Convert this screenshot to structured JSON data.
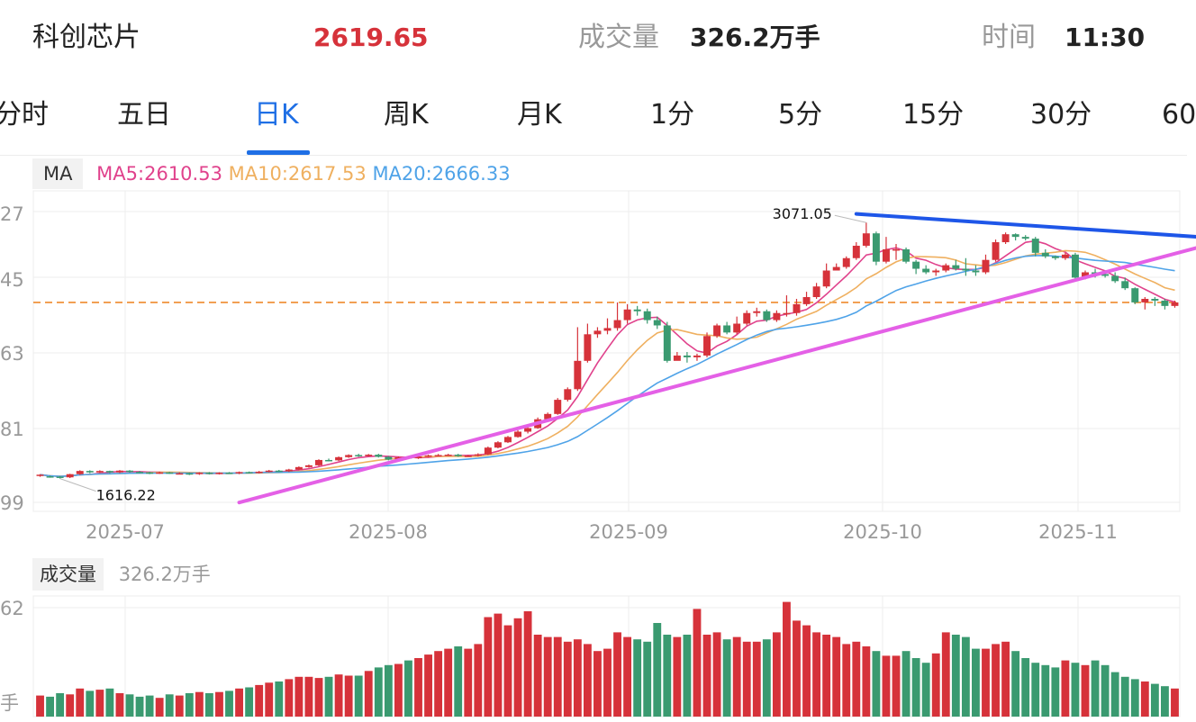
{
  "header": {
    "name": "科创芯片",
    "price": "2619.65",
    "volume_label": "成交量",
    "volume_value": "326.2万手",
    "time_label": "时间",
    "time_value": "11:30",
    "colors": {
      "up": "#d6323a",
      "down": "#3a9a70",
      "accent": "#1f6fe5"
    }
  },
  "tabs": [
    "分时",
    "五日",
    "日K",
    "周K",
    "月K",
    "1分",
    "5分",
    "15分",
    "30分",
    "60"
  ],
  "active_tab": "日K",
  "ma_legend": {
    "tag": "MA",
    "ma5": "MA5:2610.53",
    "ma10": "MA10:2617.53",
    "ma20": "MA20:2666.33",
    "colors": {
      "ma5": "#e0428c",
      "ma10": "#efb060",
      "ma20": "#4fa3e8"
    }
  },
  "volume_legend": {
    "tag": "成交量",
    "value": "326.2万手"
  },
  "price_axis_labels": [
    "27",
    "45",
    "63",
    "81",
    "99"
  ],
  "volume_axis_labels": [
    "62",
    "手"
  ],
  "annotations": {
    "high": "3071.05",
    "low": "1616.22"
  },
  "chart_data": {
    "type": "candlestick",
    "x_ticks": [
      "2025-07",
      "2025-08",
      "2025-09",
      "2025-10",
      "2025-11"
    ],
    "ylim": [
      1440,
      3250
    ],
    "close_ref": 2619.65,
    "candles": [
      [
        1640,
        1647,
        1635,
        1650
      ],
      [
        1638,
        1635,
        1630,
        1642
      ],
      [
        1636,
        1630,
        1625,
        1640
      ],
      [
        1632,
        1650,
        1628,
        1652
      ],
      [
        1650,
        1668,
        1646,
        1672
      ],
      [
        1668,
        1660,
        1655,
        1672
      ],
      [
        1660,
        1668,
        1656,
        1672
      ],
      [
        1668,
        1660,
        1655,
        1670
      ],
      [
        1660,
        1670,
        1656,
        1673
      ],
      [
        1670,
        1663,
        1658,
        1673
      ],
      [
        1663,
        1660,
        1655,
        1668
      ],
      [
        1660,
        1655,
        1650,
        1664
      ],
      [
        1655,
        1660,
        1651,
        1664
      ],
      [
        1660,
        1655,
        1651,
        1663
      ],
      [
        1655,
        1655,
        1650,
        1660
      ],
      [
        1655,
        1650,
        1645,
        1659
      ],
      [
        1650,
        1658,
        1646,
        1661
      ],
      [
        1658,
        1652,
        1648,
        1662
      ],
      [
        1652,
        1658,
        1648,
        1661
      ],
      [
        1658,
        1655,
        1651,
        1662
      ],
      [
        1655,
        1662,
        1650,
        1665
      ],
      [
        1662,
        1658,
        1654,
        1665
      ],
      [
        1658,
        1664,
        1654,
        1668
      ],
      [
        1664,
        1670,
        1660,
        1674
      ],
      [
        1670,
        1666,
        1662,
        1674
      ],
      [
        1666,
        1676,
        1662,
        1680
      ],
      [
        1676,
        1690,
        1672,
        1694
      ],
      [
        1690,
        1700,
        1686,
        1704
      ],
      [
        1700,
        1730,
        1696,
        1734
      ],
      [
        1730,
        1728,
        1722,
        1738
      ],
      [
        1728,
        1746,
        1724,
        1750
      ],
      [
        1746,
        1758,
        1742,
        1762
      ],
      [
        1758,
        1754,
        1748,
        1765
      ],
      [
        1754,
        1760,
        1750,
        1764
      ],
      [
        1760,
        1748,
        1744,
        1765
      ],
      [
        1748,
        1732,
        1728,
        1752
      ],
      [
        1732,
        1745,
        1728,
        1750
      ],
      [
        1745,
        1740,
        1735,
        1752
      ],
      [
        1740,
        1750,
        1736,
        1754
      ],
      [
        1750,
        1756,
        1746,
        1760
      ],
      [
        1756,
        1758,
        1752,
        1764
      ],
      [
        1758,
        1760,
        1752,
        1765
      ],
      [
        1760,
        1752,
        1748,
        1765
      ],
      [
        1752,
        1754,
        1748,
        1758
      ],
      [
        1754,
        1762,
        1750,
        1768
      ],
      [
        1762,
        1800,
        1758,
        1806
      ],
      [
        1800,
        1830,
        1796,
        1836
      ],
      [
        1830,
        1860,
        1826,
        1866
      ],
      [
        1860,
        1890,
        1856,
        1898
      ],
      [
        1890,
        1910,
        1880,
        1918
      ],
      [
        1910,
        1960,
        1906,
        1970
      ],
      [
        1960,
        1990,
        1950,
        1998
      ],
      [
        1990,
        2070,
        1985,
        2080
      ],
      [
        2070,
        2130,
        2060,
        2140
      ],
      [
        2130,
        2290,
        2120,
        2480
      ],
      [
        2290,
        2440,
        2280,
        2500
      ],
      [
        2440,
        2460,
        2420,
        2480
      ],
      [
        2460,
        2475,
        2440,
        2530
      ],
      [
        2475,
        2520,
        2460,
        2620
      ],
      [
        2520,
        2580,
        2500,
        2610
      ],
      [
        2580,
        2570,
        2545,
        2600
      ],
      [
        2570,
        2520,
        2500,
        2585
      ],
      [
        2520,
        2490,
        2470,
        2540
      ],
      [
        2490,
        2290,
        2280,
        2510
      ],
      [
        2290,
        2320,
        2300,
        2340
      ],
      [
        2320,
        2310,
        2280,
        2340
      ],
      [
        2310,
        2320,
        2290,
        2330
      ],
      [
        2320,
        2430,
        2310,
        2450
      ],
      [
        2430,
        2490,
        2420,
        2500
      ],
      [
        2490,
        2450,
        2440,
        2510
      ],
      [
        2450,
        2500,
        2440,
        2540
      ],
      [
        2500,
        2560,
        2490,
        2575
      ],
      [
        2560,
        2570,
        2540,
        2590
      ],
      [
        2570,
        2520,
        2510,
        2580
      ],
      [
        2520,
        2560,
        2510,
        2575
      ],
      [
        2560,
        2560,
        2540,
        2660
      ],
      [
        2560,
        2610,
        2545,
        2640
      ],
      [
        2610,
        2650,
        2600,
        2680
      ],
      [
        2650,
        2710,
        2640,
        2730
      ],
      [
        2710,
        2800,
        2700,
        2840
      ],
      [
        2800,
        2820,
        2800,
        2840
      ],
      [
        2820,
        2870,
        2810,
        2880
      ],
      [
        2870,
        2940,
        2860,
        2960
      ],
      [
        2940,
        3010,
        2930,
        3071
      ],
      [
        3010,
        2850,
        2830,
        3020
      ],
      [
        2850,
        2920,
        2840,
        2990
      ],
      [
        2920,
        2920,
        2860,
        2950
      ],
      [
        2920,
        2850,
        2840,
        2930
      ],
      [
        2850,
        2810,
        2780,
        2860
      ],
      [
        2810,
        2790,
        2780,
        2830
      ],
      [
        2790,
        2800,
        2770,
        2810
      ],
      [
        2800,
        2830,
        2790,
        2840
      ],
      [
        2830,
        2810,
        2800,
        2860
      ],
      [
        2810,
        2800,
        2770,
        2870
      ],
      [
        2800,
        2790,
        2770,
        2830
      ],
      [
        2790,
        2860,
        2780,
        2890
      ],
      [
        2860,
        2960,
        2850,
        2975
      ],
      [
        2960,
        3005,
        2950,
        3015
      ],
      [
        3005,
        2990,
        2970,
        3010
      ],
      [
        2990,
        2980,
        2970,
        3000
      ],
      [
        2980,
        2900,
        2880,
        2990
      ],
      [
        2900,
        2880,
        2870,
        2920
      ],
      [
        2880,
        2870,
        2860,
        2885
      ],
      [
        2870,
        2890,
        2860,
        2900
      ],
      [
        2890,
        2760,
        2740,
        2900
      ],
      [
        2760,
        2790,
        2750,
        2800
      ],
      [
        2790,
        2780,
        2760,
        2810
      ],
      [
        2780,
        2770,
        2760,
        2790
      ],
      [
        2770,
        2740,
        2730,
        2790
      ],
      [
        2740,
        2700,
        2690,
        2760
      ],
      [
        2700,
        2620,
        2610,
        2705
      ],
      [
        2620,
        2640,
        2580,
        2650
      ],
      [
        2640,
        2630,
        2600,
        2650
      ],
      [
        2630,
        2600,
        2580,
        2640
      ],
      [
        2600,
        2620,
        2590,
        2630
      ]
    ],
    "volumes": [
      0.18,
      0.17,
      0.2,
      0.19,
      0.24,
      0.22,
      0.23,
      0.24,
      0.2,
      0.19,
      0.17,
      0.18,
      0.16,
      0.19,
      0.18,
      0.2,
      0.21,
      0.2,
      0.21,
      0.22,
      0.24,
      0.25,
      0.27,
      0.29,
      0.3,
      0.32,
      0.34,
      0.34,
      0.33,
      0.34,
      0.36,
      0.35,
      0.35,
      0.39,
      0.42,
      0.44,
      0.45,
      0.48,
      0.5,
      0.53,
      0.56,
      0.58,
      0.6,
      0.58,
      0.62,
      0.85,
      0.88,
      0.78,
      0.84,
      0.9,
      0.7,
      0.68,
      0.68,
      0.64,
      0.66,
      0.62,
      0.56,
      0.58,
      0.72,
      0.68,
      0.66,
      0.64,
      0.8,
      0.7,
      0.68,
      0.7,
      0.92,
      0.7,
      0.72,
      0.66,
      0.68,
      0.64,
      0.64,
      0.66,
      0.72,
      0.98,
      0.82,
      0.78,
      0.72,
      0.7,
      0.68,
      0.62,
      0.64,
      0.6,
      0.56,
      0.52,
      0.52,
      0.56,
      0.5,
      0.46,
      0.54,
      0.72,
      0.7,
      0.68,
      0.58,
      0.58,
      0.62,
      0.64,
      0.56,
      0.5,
      0.46,
      0.44,
      0.42,
      0.48,
      0.46,
      0.44,
      0.48,
      0.44,
      0.38,
      0.34,
      0.32,
      0.3,
      0.28,
      0.26,
      0.24
    ],
    "trendlines": [
      {
        "name": "resistance",
        "color": "#1e56e8",
        "points": [
          [
            82,
            3120
          ],
          [
            119,
            2980
          ]
        ]
      },
      {
        "name": "support",
        "color": "#e460e6",
        "points": [
          [
            20,
            1490
          ],
          [
            119,
            2970
          ]
        ]
      }
    ]
  }
}
